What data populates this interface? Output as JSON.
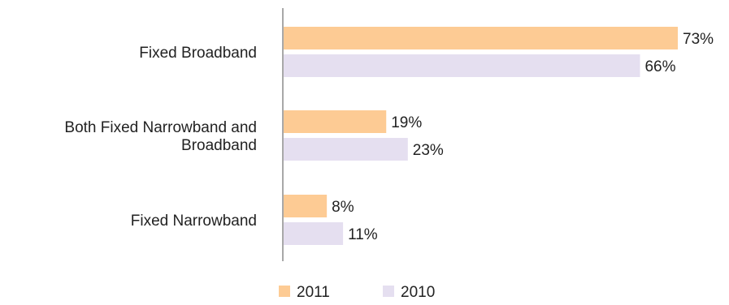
{
  "chart_data": {
    "type": "bar",
    "orientation": "horizontal",
    "title": "",
    "xlabel": "",
    "ylabel": "",
    "categories": [
      [
        "Fixed Broadband"
      ],
      [
        "Both Fixed Narrowband and",
        "Broadband"
      ],
      [
        "Fixed Narrowband"
      ]
    ],
    "series": [
      {
        "name": "2011",
        "color": "#FDCB94",
        "values": [
          73,
          19,
          8
        ]
      },
      {
        "name": "2010",
        "color": "#E5DFF0",
        "values": [
          66,
          23,
          11
        ]
      }
    ],
    "value_suffix": "%",
    "xlim": [
      0,
      100
    ],
    "grid": false,
    "legend": "bottom-center"
  }
}
